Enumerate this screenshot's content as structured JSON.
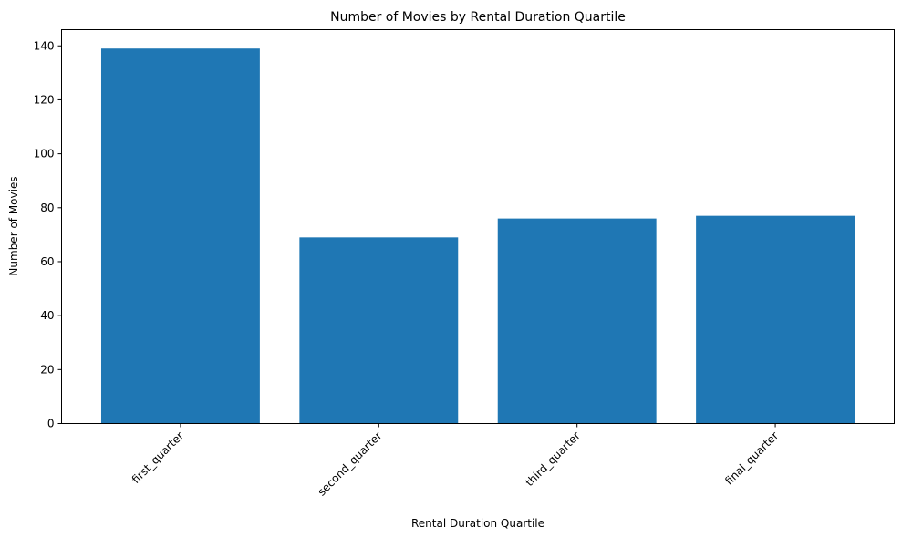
{
  "chart_data": {
    "type": "bar",
    "title": "Number of Movies by Rental Duration Quartile",
    "xlabel": "Rental Duration Quartile",
    "ylabel": "Number of Movies",
    "categories": [
      "first_quarter",
      "second_quarter",
      "third_quarter",
      "final_quarter"
    ],
    "values": [
      139,
      69,
      76,
      77
    ],
    "ylim": [
      0,
      146
    ],
    "yticks": [
      0,
      20,
      40,
      60,
      80,
      100,
      120,
      140
    ],
    "bar_color": "#1f77b4",
    "grid": false
  }
}
